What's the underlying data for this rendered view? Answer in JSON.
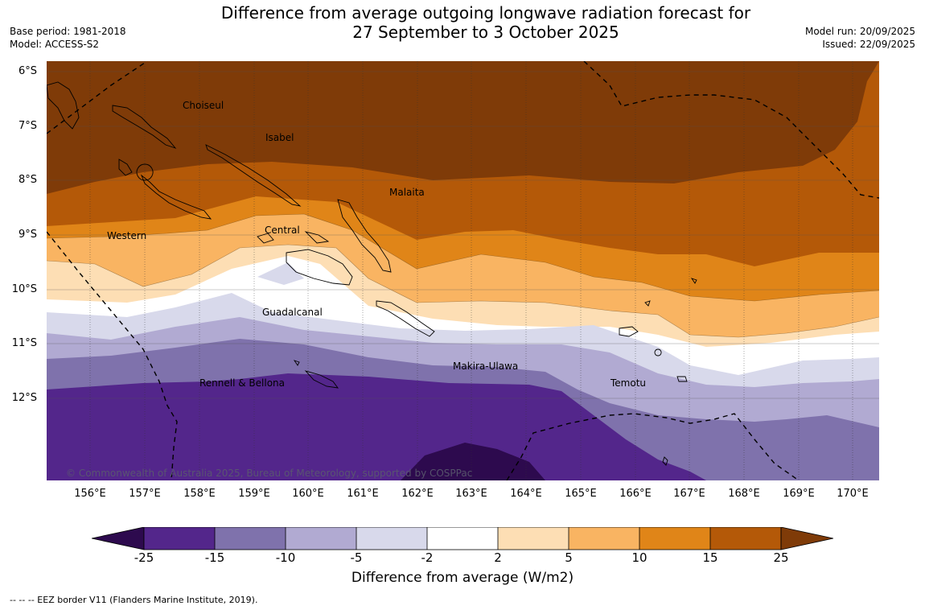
{
  "title": {
    "line1": "Difference from average outgoing longwave radiation forecast for",
    "line2": "27 September to 3 October 2025"
  },
  "meta": {
    "base_period": "Base period: 1981-2018",
    "model": "Model: ACCESS-S2",
    "model_run": "Model run: 20/09/2025",
    "issued": "Issued: 22/09/2025"
  },
  "axes": {
    "latitudes": [
      "6°S",
      "7°S",
      "8°S",
      "9°S",
      "10°S",
      "11°S",
      "12°S"
    ],
    "longitudes": [
      "156°E",
      "157°E",
      "158°E",
      "159°E",
      "160°E",
      "161°E",
      "162°E",
      "163°E",
      "164°E",
      "165°E",
      "166°E",
      "167°E",
      "168°E",
      "169°E",
      "170°E"
    ]
  },
  "places": [
    {
      "name": "Choiseul"
    },
    {
      "name": "Isabel"
    },
    {
      "name": "Malaita"
    },
    {
      "name": "Western"
    },
    {
      "name": "Central"
    },
    {
      "name": "Guadalcanal"
    },
    {
      "name": "Makira-Ulawa"
    },
    {
      "name": "Rennell & Bellona"
    },
    {
      "name": "Temotu"
    }
  ],
  "copyright": "© Commonwealth of Australia 2025, Bureau of Meteorology, supported by COSPPac",
  "colorbar": {
    "title": "Difference from average (W/m2)",
    "ticks": [
      "-25",
      "-15",
      "-10",
      "-5",
      "-2",
      "2",
      "5",
      "10",
      "15",
      "25"
    ],
    "colors": {
      "below_-25": "#2d0a4e",
      "-25_-15": "#53268b",
      "-15_-10": "#7f72ac",
      "-10_-5": "#b1aad2",
      "-5_-2": "#d8d9eb",
      "-2_2": "#ffffff",
      "2_5": "#fddeb4",
      "5_10": "#f9b462",
      "10_15": "#e08518",
      "15_25": "#b45908",
      "above_25": "#7f3b08"
    }
  },
  "footnote": "--  --  -- EEZ border V11 (Flanders Marine Institute, 2019)."
}
